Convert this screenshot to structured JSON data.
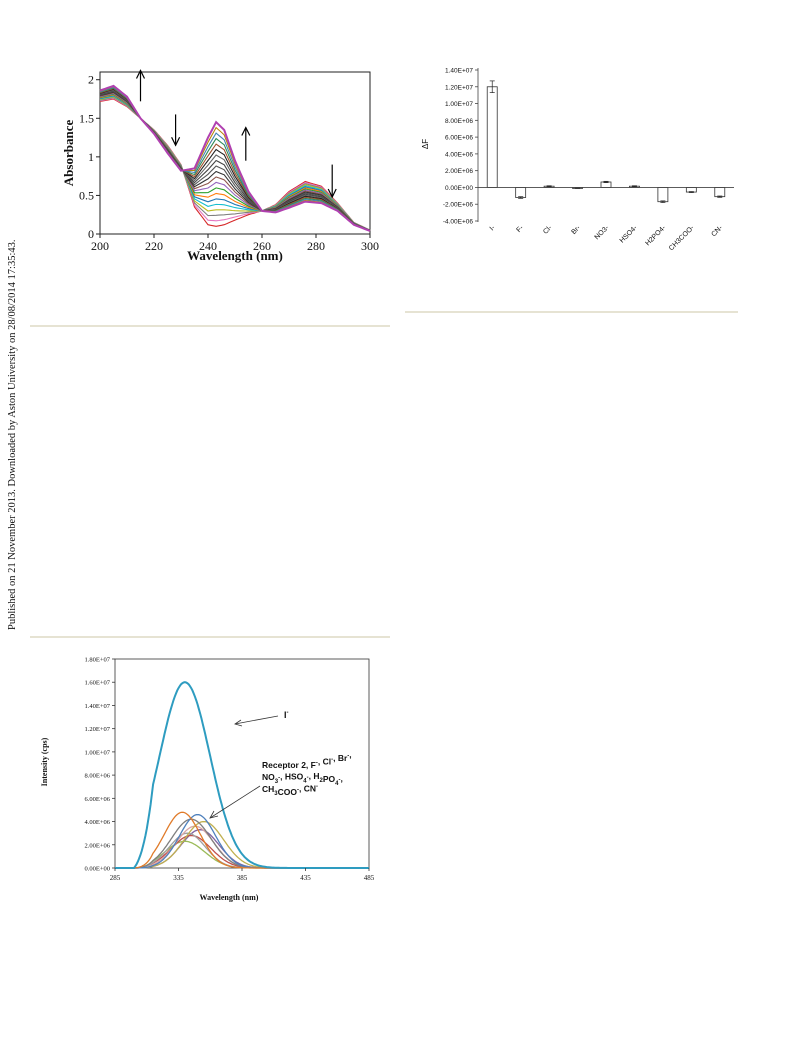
{
  "side_note": "Published on 21 November 2013. Downloaded by Aston University on 28/08/2014 17:35:43.",
  "colors": {
    "rule": "#e6e3d3",
    "uv_curves": [
      "#d62728",
      "#e377c2",
      "#7f7f7f",
      "#bcbd22",
      "#17becf",
      "#1f77b4",
      "#ff7f0e",
      "#2ca02c",
      "#9467bd",
      "#8c564b",
      "#333333",
      "#555555",
      "#444444",
      "#666666",
      "#222222",
      "#a0522d",
      "#2e8b57",
      "#4682b4",
      "#b8860b",
      "#9932cc"
    ],
    "uv_last": "#b040b0",
    "bar_outline": "#333333",
    "fl_iodide": "#2e9cc0",
    "fl_others": [
      "#e07b2a",
      "#4f81bd",
      "#7f7f7f",
      "#c0b050",
      "#d9a6a6",
      "#a0a0a0",
      "#c0504d",
      "#9bbb59",
      "#8064a2",
      "#b07070"
    ]
  },
  "chart_data": [
    {
      "type": "line",
      "xlabel": "Wavelength (nm)",
      "ylabel": "Absorbance",
      "xlim": [
        200,
        300
      ],
      "ylim": [
        0,
        2.1
      ],
      "x_ticks": [
        "200",
        "220",
        "240",
        "260",
        "280",
        "300"
      ],
      "y_ticks": [
        "0",
        "0.5",
        "1",
        "1.5",
        "2"
      ],
      "grid": false,
      "curve_count": 20,
      "series": [
        {
          "x": [
            200,
            205,
            210,
            215,
            220,
            225,
            230,
            235,
            240,
            243,
            246,
            250,
            255,
            260,
            265,
            270,
            276,
            282,
            288,
            294,
            300
          ],
          "values": [
            1.72,
            1.75,
            1.65,
            1.5,
            1.35,
            1.15,
            0.9,
            0.35,
            0.12,
            0.1,
            0.12,
            0.18,
            0.25,
            0.3,
            0.38,
            0.55,
            0.68,
            0.62,
            0.4,
            0.15,
            0.05
          ]
        },
        {
          "x": [
            200,
            205,
            210,
            215,
            220,
            225,
            230,
            235,
            240,
            243,
            246,
            250,
            255,
            260,
            265,
            270,
            276,
            282,
            288,
            294,
            300
          ],
          "values": [
            1.86,
            1.92,
            1.78,
            1.5,
            1.3,
            1.05,
            0.82,
            0.85,
            1.25,
            1.45,
            1.35,
            0.95,
            0.55,
            0.3,
            0.28,
            0.34,
            0.42,
            0.4,
            0.3,
            0.12,
            0.04
          ]
        }
      ],
      "annotations": [
        {
          "direction": "up",
          "x": 215
        },
        {
          "direction": "down",
          "x": 228
        },
        {
          "direction": "up",
          "x": 254
        },
        {
          "direction": "down",
          "x": 286
        }
      ]
    },
    {
      "type": "bar",
      "ylabel": "ΔF",
      "ylim": [
        -4000000,
        14000000
      ],
      "y_ticks": [
        "1.40E+07",
        "1.20E+07",
        "1.00E+07",
        "8.00E+06",
        "6.00E+06",
        "4.00E+06",
        "2.00E+06",
        "0.00E+00",
        "-2.00E+06",
        "-4.00E+06"
      ],
      "categories": [
        "I-",
        "F-",
        "Cl-",
        "Br-",
        "NO3-",
        "HSO4-",
        "H2PO4-",
        "CH3COO-",
        "CN-"
      ],
      "values": [
        12000000,
        -1200000,
        150000,
        -80000,
        650000,
        150000,
        -1700000,
        -550000,
        -1100000
      ],
      "errors": [
        700000,
        100000,
        50000,
        30000,
        80000,
        50000,
        100000,
        60000,
        80000
      ],
      "grid": false
    },
    {
      "type": "line",
      "xlabel": "Wavelength (nm)",
      "ylabel": "Intensity (cps)",
      "xlim": [
        285,
        485
      ],
      "ylim": [
        0,
        18000000
      ],
      "x_ticks": [
        "285",
        "335",
        "385",
        "435",
        "485"
      ],
      "y_ticks": [
        "0.00E+00",
        "2.00E+06",
        "4.00E+06",
        "6.00E+06",
        "8.00E+06",
        "1.00E+07",
        "1.20E+07",
        "1.40E+07",
        "1.60E+07",
        "1.80E+07"
      ],
      "grid": false,
      "series": [
        {
          "peak_x": 340,
          "peak_y": 16000000,
          "width": 28
        },
        {
          "peak_x": 338,
          "peak_y": 4800000,
          "width": 20
        },
        {
          "peak_x": 350,
          "peak_y": 4600000,
          "width": 20
        },
        {
          "peak_x": 345,
          "peak_y": 4200000,
          "width": 22
        },
        {
          "peak_x": 355,
          "peak_y": 4000000,
          "width": 22
        },
        {
          "peak_x": 348,
          "peak_y": 3600000,
          "width": 21
        },
        {
          "peak_x": 342,
          "peak_y": 3000000,
          "width": 20
        },
        {
          "peak_x": 345,
          "peak_y": 2800000,
          "width": 22
        },
        {
          "peak_x": 340,
          "peak_y": 2300000,
          "width": 22
        },
        {
          "peak_x": 352,
          "peak_y": 3300000,
          "width": 21
        }
      ],
      "annotations": [
        {
          "text": "I",
          "sup": "-"
        },
        {
          "lines": [
            [
              {
                "t": "Receptor 2, F"
              },
              {
                "t": "-",
                "sup": true
              },
              {
                "t": ", Cl"
              },
              {
                "t": "-",
                "sup": true
              },
              {
                "t": ", Br"
              },
              {
                "t": "-",
                "sup": true
              },
              {
                "t": ","
              }
            ],
            [
              {
                "t": "NO"
              },
              {
                "t": "3",
                "sub": true
              },
              {
                "t": "-",
                "sup": true
              },
              {
                "t": ", HSO"
              },
              {
                "t": "4",
                "sub": true
              },
              {
                "t": "-",
                "sup": true
              },
              {
                "t": ", H"
              },
              {
                "t": "2",
                "sub": true
              },
              {
                "t": "PO"
              },
              {
                "t": "4",
                "sub": true
              },
              {
                "t": "-",
                "sup": true
              },
              {
                "t": ","
              }
            ],
            [
              {
                "t": "CH"
              },
              {
                "t": "3",
                "sub": true
              },
              {
                "t": "COO"
              },
              {
                "t": "-",
                "sup": true
              },
              {
                "t": ", CN"
              },
              {
                "t": "-",
                "sup": true
              }
            ]
          ]
        }
      ]
    }
  ]
}
